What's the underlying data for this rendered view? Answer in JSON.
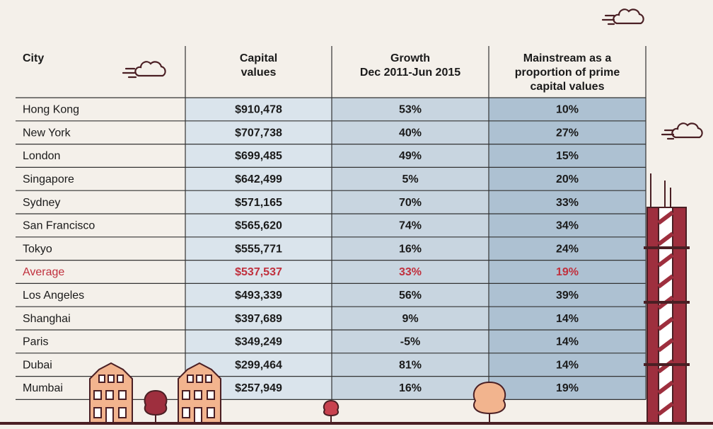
{
  "table": {
    "header": [
      [
        "City"
      ],
      [
        "Capital",
        "values"
      ],
      [
        "Growth",
        "Dec 2011-Jun 2015"
      ],
      [
        "Mainstream as a",
        "proportion of prime",
        "capital values"
      ]
    ],
    "rows": [
      [
        "Hong Kong",
        "$910,478",
        "53%",
        "10%"
      ],
      [
        "New York",
        "$707,738",
        "40%",
        "27%"
      ],
      [
        "London",
        "$699,485",
        "49%",
        "15%"
      ],
      [
        "Singapore",
        "$642,499",
        "5%",
        "20%"
      ],
      [
        "Sydney",
        "$571,165",
        "70%",
        "33%"
      ],
      [
        "San Francisco",
        "$565,620",
        "74%",
        "34%"
      ],
      [
        "Tokyo",
        "$555,771",
        "16%",
        "24%"
      ],
      [
        "Average",
        "$537,537",
        "33%",
        "19%"
      ],
      [
        "Los Angeles",
        "$493,339",
        "56%",
        "39%"
      ],
      [
        "Shanghai",
        "$397,689",
        "9%",
        "14%"
      ],
      [
        "Paris",
        "$349,249",
        "-5%",
        "14%"
      ],
      [
        "Dubai",
        "$299,464",
        "81%",
        "14%"
      ],
      [
        "Mumbai",
        "$257,949",
        "16%",
        "19%"
      ]
    ],
    "highlight_row": 7
  }
}
